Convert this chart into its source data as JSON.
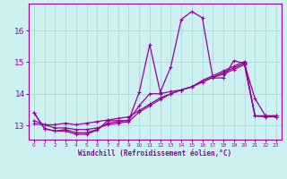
{
  "xlabel": "Windchill (Refroidissement éolien,°C)",
  "bg_color": "#cdf0f0",
  "grid_color": "#aadddd",
  "line_color": "#990099",
  "xlim": [
    -0.5,
    23.5
  ],
  "ylim": [
    12.55,
    16.85
  ],
  "xticks": [
    0,
    1,
    2,
    3,
    4,
    5,
    6,
    7,
    8,
    9,
    10,
    11,
    12,
    13,
    14,
    15,
    16,
    17,
    18,
    19,
    20,
    21,
    22,
    23
  ],
  "yticks": [
    13,
    14,
    15,
    16
  ],
  "line1_x": [
    0,
    1,
    2,
    3,
    4,
    5,
    6,
    7,
    8,
    9,
    10,
    11,
    12,
    13,
    14,
    15,
    16,
    17,
    18,
    19,
    20,
    21,
    22,
    23
  ],
  "line1_y": [
    13.4,
    12.9,
    12.82,
    12.82,
    12.72,
    12.72,
    12.85,
    13.15,
    13.15,
    13.15,
    14.05,
    15.55,
    14.05,
    14.85,
    16.35,
    16.6,
    16.4,
    14.5,
    14.5,
    15.05,
    14.95,
    13.85,
    13.3,
    13.3
  ],
  "line2_x": [
    0,
    1,
    2,
    3,
    4,
    5,
    6,
    7,
    8,
    9,
    10,
    11,
    12,
    13,
    14,
    15,
    16,
    17,
    18,
    19,
    20,
    21,
    22,
    23
  ],
  "line2_y": [
    13.4,
    12.9,
    12.82,
    12.87,
    12.77,
    12.77,
    12.87,
    13.07,
    13.12,
    13.17,
    13.62,
    14.0,
    14.0,
    14.07,
    14.12,
    14.22,
    14.42,
    14.57,
    14.72,
    14.87,
    15.02,
    13.3,
    13.3,
    13.3
  ],
  "line3_x": [
    0,
    1,
    2,
    3,
    4,
    5,
    6,
    7,
    8,
    9,
    10,
    11,
    12,
    13,
    14,
    15,
    16,
    17,
    18,
    19,
    20,
    21,
    22,
    23
  ],
  "line3_y": [
    13.05,
    13.02,
    13.02,
    13.07,
    13.02,
    13.07,
    13.12,
    13.17,
    13.22,
    13.27,
    13.47,
    13.67,
    13.87,
    14.0,
    14.12,
    14.22,
    14.37,
    14.52,
    14.62,
    14.77,
    14.92,
    13.3,
    13.3,
    13.3
  ],
  "line4_x": [
    0,
    1,
    2,
    3,
    4,
    5,
    6,
    7,
    8,
    9,
    10,
    11,
    12,
    13,
    14,
    15,
    16,
    17,
    18,
    19,
    20,
    21,
    22,
    23
  ],
  "line4_y": [
    13.15,
    13.02,
    12.92,
    12.92,
    12.87,
    12.87,
    12.92,
    13.02,
    13.07,
    13.12,
    13.42,
    13.62,
    13.82,
    14.0,
    14.12,
    14.22,
    14.37,
    14.52,
    14.67,
    14.82,
    14.97,
    13.3,
    13.27,
    13.27
  ]
}
